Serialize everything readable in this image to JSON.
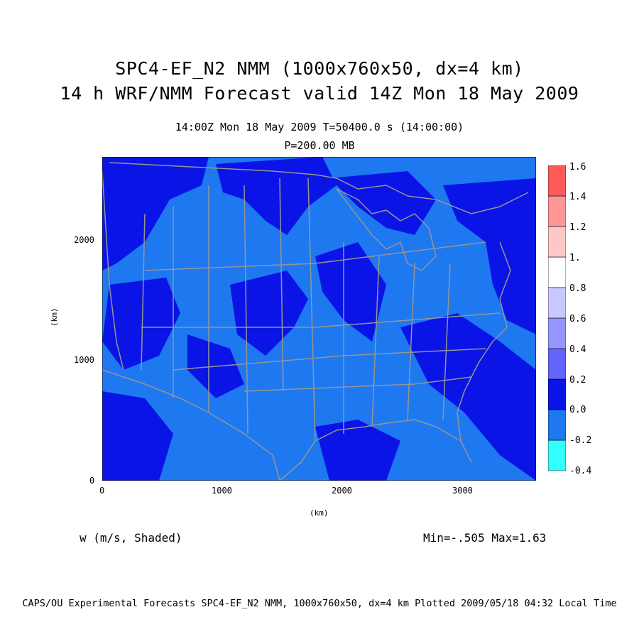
{
  "header": {
    "title_line1": "SPC4-EF_N2 NMM (1000x760x50, dx=4 km)",
    "title_line2": "14 h WRF/NMM Forecast valid 14Z Mon 18 May 2009",
    "subtitle_time": "14:00Z Mon 18 May 2009    T=50400.0 s (14:00:00)",
    "subtitle_level": "P=200.00 MB"
  },
  "axes": {
    "x_label": "(km)",
    "y_label": "(km)",
    "x_range": [
      0,
      3600
    ],
    "y_range": [
      0,
      2700
    ],
    "x_ticks": [
      "0",
      "1000",
      "2000",
      "3000"
    ],
    "y_ticks": [
      "0",
      "1000",
      "2000"
    ]
  },
  "colorbar": {
    "labels": [
      "1.6",
      "1.4",
      "1.2",
      "1.",
      "0.8",
      "0.6",
      "0.4",
      "0.2",
      "0.0",
      "-0.2",
      "-0.4"
    ],
    "levels": [
      {
        "from": -0.4,
        "to": -0.2,
        "color": "#33ffff"
      },
      {
        "from": -0.2,
        "to": 0.0,
        "color": "#1e78f0"
      },
      {
        "from": 0.0,
        "to": 0.2,
        "color": "#0a14e6"
      },
      {
        "from": 0.2,
        "to": 0.4,
        "color": "#6464ff"
      },
      {
        "from": 0.4,
        "to": 0.6,
        "color": "#9696ff"
      },
      {
        "from": 0.6,
        "to": 0.8,
        "color": "#c8c8ff"
      },
      {
        "from": 0.8,
        "to": 1.0,
        "color": "#ffffff"
      },
      {
        "from": 1.0,
        "to": 1.2,
        "color": "#ffc8c8"
      },
      {
        "from": 1.2,
        "to": 1.4,
        "color": "#ff9696"
      },
      {
        "from": 1.4,
        "to": 1.6,
        "color": "#ff5a5a"
      }
    ]
  },
  "map": {
    "background_color": "#1e78f0",
    "upward_color": "#0a14e6",
    "boundary_color": "#969696"
  },
  "footer": {
    "variable": "w (m/s, Shaded)",
    "minmax": "Min=-.505 Max=1.63",
    "credit": "CAPS/OU Experimental Forecasts  SPC4-EF_N2 NMM, 1000x760x50, dx=4 km  Plotted 2009/05/18 04:32 Local Time"
  }
}
